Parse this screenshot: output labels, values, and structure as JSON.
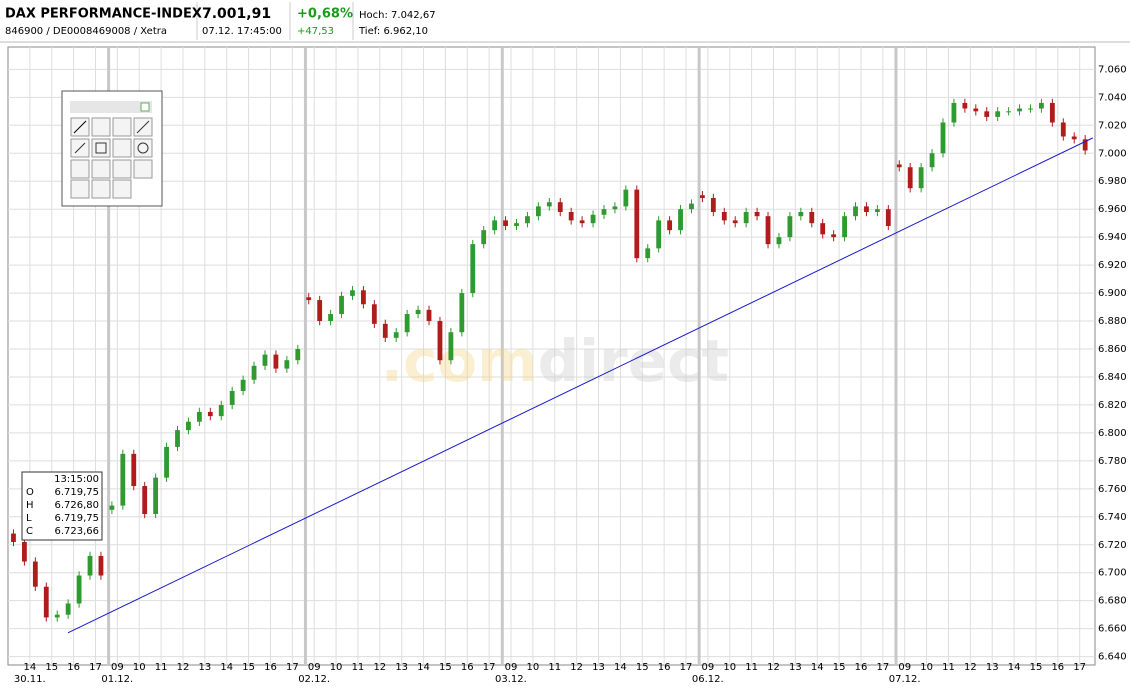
{
  "header": {
    "title": "DAX PERFORMANCE-INDEX",
    "subtitle": "846900 / DE0008469008 / Xetra",
    "price": "7.001,91",
    "time": "07.12. 17:45:00",
    "change_pct": "+0,68%",
    "change_abs": "+47,53",
    "high": "Hoch: 7.042,67",
    "low": "Tief: 6.962,10"
  },
  "tooltip": {
    "time": "13:15:00",
    "rows": [
      [
        "O",
        "6.719,75"
      ],
      [
        "H",
        "6.726,80"
      ],
      [
        "L",
        "6.719,75"
      ],
      [
        "C",
        "6.723,66"
      ]
    ]
  },
  "watermark": [
    ".com",
    "direct"
  ],
  "chart_data": {
    "type": "candlestick",
    "up_color": "#2f9a2f",
    "down_color": "#b01c1c",
    "grid": true,
    "xlim": [
      -1,
      48.7
    ],
    "ylim": [
      6634,
      7076
    ],
    "yticks": [
      {
        "value": 6640,
        "label": "6.640"
      },
      {
        "value": 6660,
        "label": "6.660"
      },
      {
        "value": 6680,
        "label": "6.680"
      },
      {
        "value": 6700,
        "label": "6.700"
      },
      {
        "value": 6720,
        "label": "6.720"
      },
      {
        "value": 6740,
        "label": "6.740"
      },
      {
        "value": 6760,
        "label": "6.760"
      },
      {
        "value": 6780,
        "label": "6.780"
      },
      {
        "value": 6800,
        "label": "6.800"
      },
      {
        "value": 6820,
        "label": "6.820"
      },
      {
        "value": 6840,
        "label": "6.840"
      },
      {
        "value": 6860,
        "label": "6.860"
      },
      {
        "value": 6880,
        "label": "6.880"
      },
      {
        "value": 6900,
        "label": "6.900"
      },
      {
        "value": 6920,
        "label": "6.920"
      },
      {
        "value": 6940,
        "label": "6.940"
      },
      {
        "value": 6960,
        "label": "6.960"
      },
      {
        "value": 6980,
        "label": "6.980"
      },
      {
        "value": 7000,
        "label": "7.000"
      },
      {
        "value": 7020,
        "label": "7.020"
      },
      {
        "value": 7040,
        "label": "7.040"
      },
      {
        "value": 7060,
        "label": "7.060"
      }
    ],
    "xticks": [
      {
        "value": 0,
        "label": "14"
      },
      {
        "value": 1,
        "label": "15"
      },
      {
        "value": 2,
        "label": "16"
      },
      {
        "value": 3,
        "label": "17"
      },
      {
        "value": 4,
        "label": "09"
      },
      {
        "value": 5,
        "label": "10"
      },
      {
        "value": 6,
        "label": "11"
      },
      {
        "value": 7,
        "label": "12"
      },
      {
        "value": 8,
        "label": "13"
      },
      {
        "value": 9,
        "label": "14"
      },
      {
        "value": 10,
        "label": "15"
      },
      {
        "value": 11,
        "label": "16"
      },
      {
        "value": 12,
        "label": "17"
      },
      {
        "value": 13,
        "label": "09"
      },
      {
        "value": 14,
        "label": "10"
      },
      {
        "value": 15,
        "label": "11"
      },
      {
        "value": 16,
        "label": "12"
      },
      {
        "value": 17,
        "label": "13"
      },
      {
        "value": 18,
        "label": "14"
      },
      {
        "value": 19,
        "label": "15"
      },
      {
        "value": 20,
        "label": "16"
      },
      {
        "value": 21,
        "label": "17"
      },
      {
        "value": 22,
        "label": "09"
      },
      {
        "value": 23,
        "label": "10"
      },
      {
        "value": 24,
        "label": "11"
      },
      {
        "value": 25,
        "label": "12"
      },
      {
        "value": 26,
        "label": "13"
      },
      {
        "value": 27,
        "label": "14"
      },
      {
        "value": 28,
        "label": "15"
      },
      {
        "value": 29,
        "label": "16"
      },
      {
        "value": 30,
        "label": "17"
      },
      {
        "value": 31,
        "label": "09"
      },
      {
        "value": 32,
        "label": "10"
      },
      {
        "value": 33,
        "label": "11"
      },
      {
        "value": 34,
        "label": "12"
      },
      {
        "value": 35,
        "label": "13"
      },
      {
        "value": 36,
        "label": "14"
      },
      {
        "value": 37,
        "label": "15"
      },
      {
        "value": 38,
        "label": "16"
      },
      {
        "value": 39,
        "label": "17"
      },
      {
        "value": 40,
        "label": "09"
      },
      {
        "value": 41,
        "label": "10"
      },
      {
        "value": 42,
        "label": "11"
      },
      {
        "value": 43,
        "label": "12"
      },
      {
        "value": 44,
        "label": "13"
      },
      {
        "value": 45,
        "label": "14"
      },
      {
        "value": 46,
        "label": "15"
      },
      {
        "value": 47,
        "label": "16"
      },
      {
        "value": 48,
        "label": "17"
      }
    ],
    "date_labels": [
      {
        "value": 0,
        "label": "30.11."
      },
      {
        "value": 4,
        "label": "01.12."
      },
      {
        "value": 13,
        "label": "02.12."
      },
      {
        "value": 22,
        "label": "03.12."
      },
      {
        "value": 31,
        "label": "06.12."
      },
      {
        "value": 40,
        "label": "07.12."
      }
    ],
    "x": [
      -0.75,
      -0.25,
      0.25,
      0.75,
      1.25,
      1.75,
      2.25,
      2.75,
      3.25,
      3.75,
      4.25,
      4.75,
      5.25,
      5.75,
      6.25,
      6.75,
      7.25,
      7.75,
      8.25,
      8.75,
      9.25,
      9.75,
      10.25,
      10.75,
      11.25,
      11.75,
      12.25,
      12.75,
      13.25,
      13.75,
      14.25,
      14.75,
      15.25,
      15.75,
      16.25,
      16.75,
      17.25,
      17.75,
      18.25,
      18.75,
      19.25,
      19.75,
      20.25,
      20.75,
      21.25,
      21.75,
      22.25,
      22.75,
      23.25,
      23.75,
      24.25,
      24.75,
      25.25,
      25.75,
      26.25,
      26.75,
      27.25,
      27.75,
      28.25,
      28.75,
      29.25,
      29.75,
      30.25,
      30.75,
      31.25,
      31.75,
      32.25,
      32.75,
      33.25,
      33.75,
      34.25,
      34.75,
      35.25,
      35.75,
      36.25,
      36.75,
      37.25,
      37.75,
      38.25,
      38.75,
      39.25,
      39.75,
      40.25,
      40.75,
      41.25,
      41.75,
      42.25,
      42.75,
      43.25,
      43.75,
      44.25,
      44.75,
      45.25,
      45.75,
      46.25,
      46.75,
      47.25,
      47.75,
      48.25
    ],
    "open": [
      6728,
      6722,
      6708,
      6690,
      6668,
      6670,
      6678,
      6698,
      6712,
      6745,
      6748,
      6785,
      6762,
      6742,
      6768,
      6790,
      6802,
      6808,
      6815,
      6812,
      6820,
      6830,
      6838,
      6848,
      6856,
      6846,
      6852,
      6897,
      6895,
      6880,
      6885,
      6898,
      6902,
      6892,
      6878,
      6868,
      6872,
      6885,
      6888,
      6880,
      6852,
      6872,
      6900,
      6935,
      6945,
      6952,
      6948,
      6950,
      6955,
      6962,
      6965,
      6958,
      6952,
      6950,
      6956,
      6960,
      6962,
      6974,
      6925,
      6932,
      6952,
      6945,
      6960,
      6970,
      6968,
      6958,
      6952,
      6950,
      6958,
      6955,
      6935,
      6940,
      6955,
      6958,
      6950,
      6942,
      6940,
      6955,
      6962,
      6958,
      6960,
      6992,
      6990,
      6975,
      6990,
      7000,
      7022,
      7036,
      7032,
      7030,
      7026,
      7030,
      7030,
      7032,
      7032,
      7036,
      7022,
      7012,
      7010
    ],
    "high": [
      6731,
      6725,
      6711,
      6693,
      6673,
      6681,
      6701,
      6715,
      6715,
      6751,
      6788,
      6788,
      6765,
      6771,
      6793,
      6805,
      6811,
      6818,
      6818,
      6823,
      6833,
      6841,
      6851,
      6859,
      6859,
      6855,
      6863,
      6900,
      6898,
      6888,
      6901,
      6905,
      6905,
      6895,
      6881,
      6875,
      6888,
      6891,
      6891,
      6883,
      6875,
      6903,
      6938,
      6948,
      6955,
      6955,
      6953,
      6958,
      6965,
      6968,
      6968,
      6961,
      6955,
      6959,
      6963,
      6965,
      6977,
      6977,
      6935,
      6955,
      6955,
      6963,
      6967,
      6973,
      6971,
      6961,
      6955,
      6961,
      6961,
      6958,
      6943,
      6958,
      6961,
      6961,
      6953,
      6945,
      6958,
      6965,
      6965,
      6963,
      6963,
      6995,
      6993,
      6993,
      7003,
      7025,
      7039,
      7039,
      7035,
      7033,
      7033,
      7033,
      7035,
      7035,
      7039,
      7039,
      7025,
      7015,
      7013
    ],
    "low": [
      6719,
      6705,
      6687,
      6665,
      6665,
      6667,
      6675,
      6695,
      6695,
      6742,
      6745,
      6759,
      6739,
      6739,
      6765,
      6787,
      6799,
      6805,
      6809,
      6809,
      6817,
      6827,
      6835,
      6845,
      6843,
      6843,
      6849,
      6892,
      6877,
      6877,
      6882,
      6895,
      6889,
      6875,
      6865,
      6865,
      6869,
      6882,
      6877,
      6849,
      6849,
      6869,
      6897,
      6932,
      6942,
      6945,
      6945,
      6947,
      6952,
      6959,
      6955,
      6949,
      6947,
      6947,
      6953,
      6957,
      6959,
      6922,
      6922,
      6929,
      6942,
      6942,
      6957,
      6965,
      6955,
      6949,
      6947,
      6947,
      6952,
      6932,
      6932,
      6937,
      6952,
      6947,
      6939,
      6937,
      6937,
      6952,
      6955,
      6955,
      6945,
      6987,
      6972,
      6972,
      6987,
      6997,
      7019,
      7029,
      7027,
      7023,
      7023,
      7027,
      7027,
      7029,
      7029,
      7019,
      7009,
      7007,
      6999
    ],
    "close": [
      6722,
      6708,
      6690,
      6668,
      6670,
      6678,
      6698,
      6712,
      6698,
      6748,
      6785,
      6762,
      6742,
      6768,
      6790,
      6802,
      6808,
      6815,
      6812,
      6820,
      6830,
      6838,
      6848,
      6856,
      6846,
      6852,
      6860,
      6895,
      6880,
      6885,
      6898,
      6902,
      6892,
      6878,
      6868,
      6872,
      6885,
      6888,
      6880,
      6852,
      6872,
      6900,
      6935,
      6945,
      6952,
      6948,
      6950,
      6955,
      6962,
      6965,
      6958,
      6952,
      6950,
      6956,
      6960,
      6962,
      6974,
      6925,
      6932,
      6952,
      6945,
      6960,
      6964,
      6968,
      6958,
      6952,
      6950,
      6958,
      6955,
      6935,
      6940,
      6955,
      6958,
      6950,
      6942,
      6940,
      6955,
      6962,
      6958,
      6960,
      6948,
      6990,
      6975,
      6990,
      7000,
      7022,
      7036,
      7032,
      7030,
      7026,
      7030,
      7030,
      7032,
      7032,
      7036,
      7022,
      7012,
      7010,
      7002
    ],
    "trendline": {
      "color": "#1a1acc",
      "x": [
        1.74,
        48.6
      ],
      "values": [
        6657,
        7011
      ]
    }
  }
}
